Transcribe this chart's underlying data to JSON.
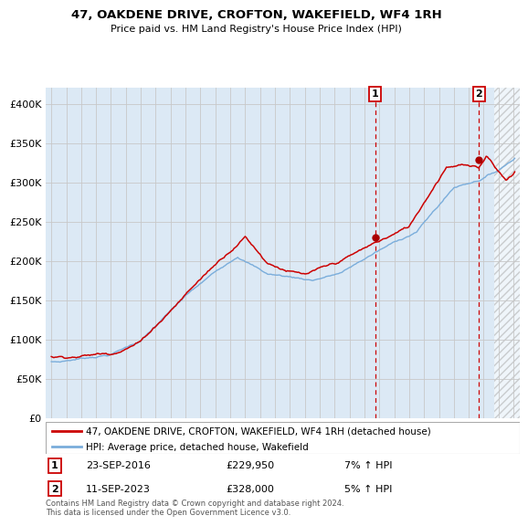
{
  "title": "47, OAKDENE DRIVE, CROFTON, WAKEFIELD, WF4 1RH",
  "subtitle": "Price paid vs. HM Land Registry's House Price Index (HPI)",
  "legend_line1": "47, OAKDENE DRIVE, CROFTON, WAKEFIELD, WF4 1RH (detached house)",
  "legend_line2": "HPI: Average price, detached house, Wakefield",
  "annotation1_date": "23-SEP-2016",
  "annotation1_price": "£229,950",
  "annotation1_hpi": "7% ↑ HPI",
  "annotation1_year": 2016.72,
  "annotation1_value": 229950,
  "annotation2_date": "11-SEP-2023",
  "annotation2_price": "£328,000",
  "annotation2_hpi": "5% ↑ HPI",
  "annotation2_year": 2023.69,
  "annotation2_value": 328000,
  "hpi_color": "#7aaddb",
  "price_color": "#cc0000",
  "marker_color": "#aa0000",
  "vline_color": "#cc0000",
  "grid_color": "#c8c8c8",
  "bg_color": "#dce9f5",
  "hatch_color": "#bbbbbb",
  "ylim_max": 420000,
  "yticks": [
    0,
    50000,
    100000,
    150000,
    200000,
    250000,
    300000,
    350000,
    400000
  ],
  "xlim_min": 1994.6,
  "xlim_max": 2026.4,
  "footer": "Contains HM Land Registry data © Crown copyright and database right 2024.\nThis data is licensed under the Open Government Licence v3.0.",
  "hatch_start": 2024.69
}
